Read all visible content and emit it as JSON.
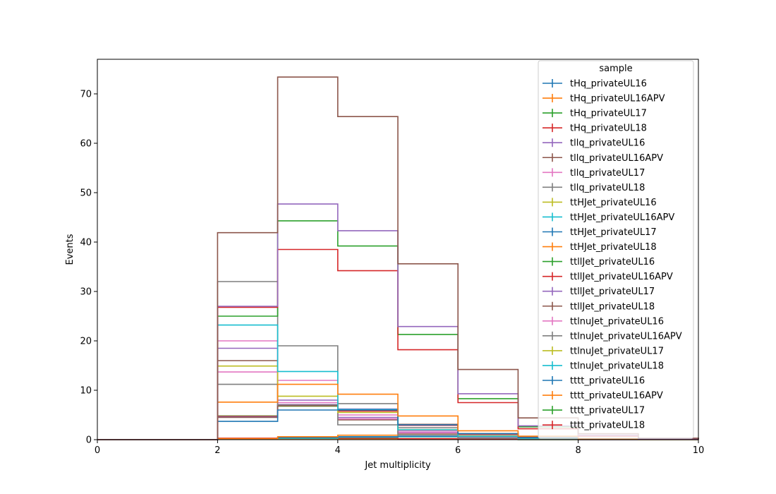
{
  "chart_data": {
    "type": "line",
    "step": true,
    "xlabel": "Jet multiplicity",
    "ylabel": "Events",
    "xlim": [
      0,
      10
    ],
    "ylim": [
      0,
      77
    ],
    "xticks": [
      0,
      2,
      4,
      6,
      8,
      10
    ],
    "yticks": [
      0,
      10,
      20,
      30,
      40,
      50,
      60,
      70
    ],
    "grid": false,
    "legend": {
      "title": "sample",
      "placement": "top-right"
    },
    "bin_edges": [
      0,
      1,
      2,
      3,
      4,
      5,
      6,
      7,
      8,
      9,
      10
    ],
    "series": [
      {
        "name": "tHq_privateUL16",
        "color": "#1f77b4",
        "values": [
          0,
          0,
          0.1,
          0.2,
          0.15,
          0.1,
          0.05,
          0.02,
          0,
          0
        ]
      },
      {
        "name": "tHq_privateUL16APV",
        "color": "#ff7f0e",
        "values": [
          0,
          0,
          0.1,
          0.2,
          0.15,
          0.1,
          0.05,
          0.02,
          0,
          0
        ]
      },
      {
        "name": "tHq_privateUL17",
        "color": "#2ca02c",
        "values": [
          0,
          0,
          0.15,
          0.3,
          0.25,
          0.15,
          0.08,
          0.03,
          0,
          0
        ]
      },
      {
        "name": "tHq_privateUL18",
        "color": "#d62728",
        "values": [
          0,
          0,
          0.3,
          0.4,
          0.3,
          0.2,
          0.1,
          0.05,
          0,
          0
        ]
      },
      {
        "name": "tllq_privateUL16",
        "color": "#9467bd",
        "values": [
          0,
          0,
          18.5,
          8.0,
          4.5,
          1.5,
          0.5,
          0.2,
          0,
          0
        ]
      },
      {
        "name": "tllq_privateUL16APV",
        "color": "#8c564b",
        "values": [
          0,
          0,
          16.0,
          7.0,
          4.0,
          1.3,
          0.4,
          0.2,
          0,
          0
        ]
      },
      {
        "name": "tllq_privateUL17",
        "color": "#e377c2",
        "values": [
          0,
          0,
          20.0,
          7.5,
          4.2,
          1.4,
          0.5,
          0.2,
          0,
          0
        ]
      },
      {
        "name": "tllq_privateUL18",
        "color": "#7f7f7f",
        "values": [
          0,
          0,
          32.0,
          19.0,
          7.3,
          2.4,
          0.8,
          0.3,
          0,
          0
        ]
      },
      {
        "name": "ttHJet_privateUL16",
        "color": "#bcbd22",
        "values": [
          0,
          0,
          0.1,
          0.3,
          0.5,
          0.6,
          0.5,
          0.3,
          0.1,
          0
        ]
      },
      {
        "name": "ttHJet_privateUL16APV",
        "color": "#17becf",
        "values": [
          0,
          0,
          0.1,
          0.3,
          0.5,
          0.6,
          0.5,
          0.3,
          0.1,
          0
        ]
      },
      {
        "name": "ttHJet_privateUL17",
        "color": "#1f77b4",
        "values": [
          0,
          0,
          0.1,
          0.4,
          0.6,
          0.7,
          0.6,
          0.4,
          0.1,
          0
        ]
      },
      {
        "name": "ttHJet_privateUL18",
        "color": "#ff7f0e",
        "values": [
          0,
          0,
          0.2,
          0.6,
          0.9,
          1.0,
          0.8,
          0.5,
          0.2,
          0
        ]
      },
      {
        "name": "ttllJet_privateUL16",
        "color": "#2ca02c",
        "values": [
          0,
          0,
          4.8,
          6.8,
          6.0,
          3.0,
          1.2,
          0.5,
          0.1,
          0
        ]
      },
      {
        "name": "ttllJet_privateUL16APV",
        "color": "#d62728",
        "values": [
          0,
          0,
          4.7,
          6.9,
          5.8,
          2.9,
          1.1,
          0.5,
          0.1,
          0
        ]
      },
      {
        "name": "ttllJet_privateUL17",
        "color": "#9467bd",
        "values": [
          0,
          0,
          4.6,
          7.1,
          6.2,
          3.0,
          1.2,
          0.5,
          0.1,
          0
        ]
      },
      {
        "name": "ttllJet_privateUL18",
        "color": "#8c564b",
        "values": [
          0,
          0,
          4.5,
          7.0,
          6.1,
          3.1,
          1.2,
          0.5,
          0.1,
          0
        ]
      },
      {
        "name": "ttlnuJet_privateUL16",
        "color": "#e377c2",
        "values": [
          0,
          0,
          13.7,
          12.0,
          5.0,
          1.8,
          0.6,
          0.2,
          0.1,
          0
        ]
      },
      {
        "name": "ttlnuJet_privateUL16APV",
        "color": "#7f7f7f",
        "values": [
          0,
          0,
          11.2,
          7.0,
          3.0,
          1.0,
          0.3,
          0.1,
          0,
          0
        ]
      },
      {
        "name": "ttlnuJet_privateUL17",
        "color": "#bcbd22",
        "values": [
          0,
          0,
          14.9,
          8.8,
          5.5,
          2.0,
          0.7,
          0.3,
          0.1,
          0
        ]
      },
      {
        "name": "ttlnuJet_privateUL18",
        "color": "#17becf",
        "values": [
          0,
          0,
          23.2,
          13.8,
          6.1,
          2.0,
          0.7,
          0.3,
          0.1,
          0
        ]
      },
      {
        "name": "tttt_privateUL16",
        "color": "#1f77b4",
        "values": [
          0,
          0,
          3.7,
          6.0,
          6.0,
          3.0,
          1.2,
          0.4,
          0.1,
          0
        ]
      },
      {
        "name": "tttt_privateUL16APV",
        "color": "#ff7f0e",
        "values": [
          0,
          0,
          7.6,
          11.2,
          9.2,
          4.8,
          1.8,
          0.7,
          0.2,
          0
        ]
      },
      {
        "name": "tttt_privateUL17",
        "color": "#2ca02c",
        "values": [
          0,
          0,
          25.0,
          44.3,
          39.2,
          21.3,
          8.3,
          2.6,
          0.8,
          0.2
        ]
      },
      {
        "name": "tttt_privateUL18",
        "color": "#d62728",
        "values": [
          0,
          0,
          26.8,
          38.5,
          34.2,
          18.2,
          7.5,
          2.2,
          0.7,
          0.2
        ]
      },
      {
        "name": "",
        "color": "#9467bd",
        "values": [
          0,
          0,
          27.0,
          47.7,
          42.3,
          22.9,
          9.3,
          2.8,
          0.9,
          0.2
        ]
      },
      {
        "name": "",
        "color": "#8c564b",
        "values": [
          0,
          0,
          41.9,
          73.4,
          65.4,
          35.6,
          14.2,
          4.4,
          1.2,
          0.3
        ]
      }
    ]
  }
}
